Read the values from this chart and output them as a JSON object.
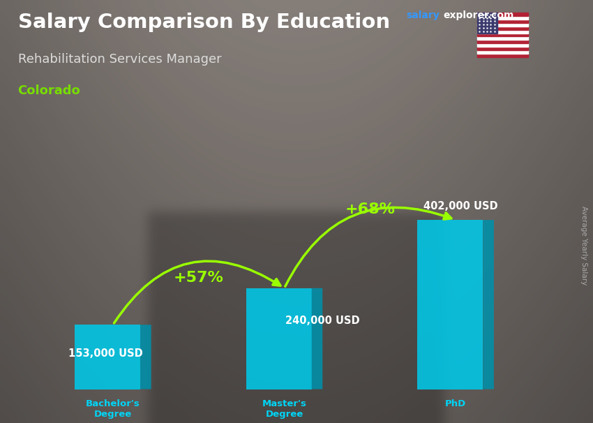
{
  "title": "Salary Comparison By Education",
  "subtitle": "Rehabilitation Services Manager",
  "location": "Colorado",
  "categories": [
    "Bachelor's\nDegree",
    "Master's\nDegree",
    "PhD"
  ],
  "values": [
    153000,
    240000,
    402000
  ],
  "value_labels": [
    "153,000 USD",
    "240,000 USD",
    "402,000 USD"
  ],
  "pct_labels": [
    "+57%",
    "+68%"
  ],
  "color_front": "#00c8e8",
  "color_top": "#55e5ff",
  "color_side": "#0090aa",
  "bg_color": "#4a4a5a",
  "title_color": "#ffffff",
  "subtitle_color": "#dddddd",
  "location_color": "#77dd00",
  "value_label_color": "#ffffff",
  "pct_color": "#99ff00",
  "arrow_color": "#99ff00",
  "xticklabel_color": "#00d4f5",
  "brand_salary_color": "#3399ff",
  "brand_rest_color": "#ffffff",
  "ylabel_text": "Average Yearly Salary",
  "ylabel_color": "#aaaaaa",
  "figsize": [
    8.5,
    6.06
  ],
  "dpi": 100
}
